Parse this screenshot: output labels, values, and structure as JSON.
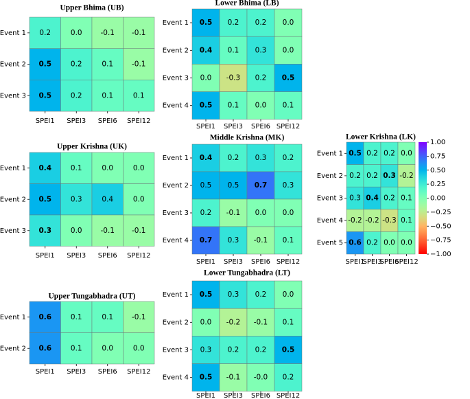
{
  "chart_data": [
    {
      "type": "heatmap",
      "title": "Upper Bhima (UB)",
      "colormap": "rainbow_r",
      "vlim": [
        -1,
        1
      ],
      "x": [
        "SPEI1",
        "SPEI3",
        "SPEI6",
        "SPEI12"
      ],
      "y": [
        "Event 1",
        "Event 2",
        "Event 3"
      ],
      "values": [
        [
          0.2,
          0.0,
          -0.1,
          -0.1
        ],
        [
          0.5,
          0.2,
          0.1,
          -0.1
        ],
        [
          0.5,
          0.2,
          0.1,
          0.1
        ]
      ],
      "value_labels": [
        [
          "0.2",
          "0.0",
          "-0.1",
          "-0.1"
        ],
        [
          "0.5",
          "0.2",
          "0.1",
          "-0.1"
        ],
        [
          "0.5",
          "0.2",
          "0.1",
          "0.1"
        ]
      ],
      "bold": [
        [
          false,
          false,
          false,
          false
        ],
        [
          true,
          false,
          false,
          false
        ],
        [
          true,
          false,
          false,
          false
        ]
      ]
    },
    {
      "type": "heatmap",
      "title": "Lower Bhima (LB)",
      "colormap": "rainbow_r",
      "vlim": [
        -1,
        1
      ],
      "x": [
        "SPEI1",
        "SPEI3",
        "SPEI6",
        "SPEI12"
      ],
      "y": [
        "Event 1",
        "Event 2",
        "Event 3",
        "Event 4"
      ],
      "values": [
        [
          0.5,
          0.2,
          0.2,
          0.0
        ],
        [
          0.4,
          0.1,
          0.3,
          0.0
        ],
        [
          0.0,
          -0.3,
          0.2,
          0.5
        ],
        [
          0.5,
          0.1,
          0.0,
          0.1
        ]
      ],
      "value_labels": [
        [
          "0.5",
          "0.2",
          "0.2",
          "0.0"
        ],
        [
          "0.4",
          "0.1",
          "0.3",
          "0.0"
        ],
        [
          "0.0",
          "-0.3",
          "0.2",
          "0.5"
        ],
        [
          "0.5",
          "0.1",
          "0.0",
          "0.1"
        ]
      ],
      "bold": [
        [
          true,
          false,
          false,
          false
        ],
        [
          true,
          false,
          false,
          false
        ],
        [
          false,
          false,
          false,
          true
        ],
        [
          true,
          false,
          false,
          false
        ]
      ]
    },
    {
      "type": "heatmap",
      "title": "Upper Krishna (UK)",
      "colormap": "rainbow_r",
      "vlim": [
        -1,
        1
      ],
      "x": [
        "SPEI1",
        "SPEI3",
        "SPEI6",
        "SPEI12"
      ],
      "y": [
        "Event 1",
        "Event 2",
        "Event 3"
      ],
      "values": [
        [
          0.4,
          0.1,
          0.0,
          0.0
        ],
        [
          0.5,
          0.3,
          0.4,
          0.0
        ],
        [
          0.3,
          0.0,
          -0.1,
          -0.1
        ]
      ],
      "value_labels": [
        [
          "0.4",
          "0.1",
          "0.0",
          "0.0"
        ],
        [
          "0.5",
          "0.3",
          "0.4",
          "0.0"
        ],
        [
          "0.3",
          "0.0",
          "-0.1",
          "-0.1"
        ]
      ],
      "bold": [
        [
          true,
          false,
          false,
          false
        ],
        [
          true,
          false,
          false,
          false
        ],
        [
          true,
          false,
          false,
          false
        ]
      ]
    },
    {
      "type": "heatmap",
      "title": "Middle Krishna (MK)",
      "colormap": "rainbow_r",
      "vlim": [
        -1,
        1
      ],
      "x": [
        "SPEI1",
        "SPEI3",
        "SPEI6",
        "SPEI12"
      ],
      "y": [
        "Event 1",
        "Event 2",
        "Event 3",
        "Event 4"
      ],
      "values": [
        [
          0.4,
          0.2,
          0.3,
          0.2
        ],
        [
          0.5,
          0.5,
          0.7,
          0.3
        ],
        [
          0.2,
          -0.1,
          0.0,
          0.0
        ],
        [
          0.7,
          0.3,
          -0.1,
          0.1
        ]
      ],
      "value_labels": [
        [
          "0.4",
          "0.2",
          "0.3",
          "0.2"
        ],
        [
          "0.5",
          "0.5",
          "0.7",
          "0.3"
        ],
        [
          "0.2",
          "-0.1",
          "0.0",
          "0.0"
        ],
        [
          "0.7",
          "0.3",
          "-0.1",
          "0.1"
        ]
      ],
      "bold": [
        [
          true,
          false,
          false,
          false
        ],
        [
          false,
          false,
          true,
          false
        ],
        [
          false,
          false,
          false,
          false
        ],
        [
          true,
          false,
          false,
          false
        ]
      ]
    },
    {
      "type": "heatmap",
      "title": "Lower Krishna (LK)",
      "colormap": "rainbow_r",
      "vlim": [
        -1,
        1
      ],
      "x": [
        "SPEI1",
        "SPEI3",
        "SPEI6",
        "SPEI12"
      ],
      "y": [
        "Event 1",
        "Event 2",
        "Event 3",
        "Event 4",
        "Event 5"
      ],
      "values": [
        [
          0.5,
          0.2,
          0.2,
          0.0
        ],
        [
          0.2,
          0.2,
          0.3,
          -0.2
        ],
        [
          0.3,
          0.4,
          0.2,
          0.1
        ],
        [
          -0.2,
          -0.2,
          -0.3,
          0.1
        ],
        [
          0.6,
          0.2,
          0.0,
          0.0
        ]
      ],
      "value_labels": [
        [
          "0.5",
          "0.2",
          "0.2",
          "0.0"
        ],
        [
          "0.2",
          "0.2",
          "0.3",
          "-0.2"
        ],
        [
          "0.3",
          "0.4",
          "0.2",
          "0.1"
        ],
        [
          "-0.2",
          "-0.2",
          "-0.3",
          "0.1"
        ],
        [
          "0.6",
          "0.2",
          "0.0",
          "0.0"
        ]
      ],
      "bold": [
        [
          true,
          false,
          false,
          false
        ],
        [
          false,
          false,
          true,
          false
        ],
        [
          false,
          true,
          false,
          false
        ],
        [
          false,
          false,
          false,
          false
        ],
        [
          true,
          false,
          false,
          false
        ]
      ],
      "colorbar": {
        "lim": [
          -1,
          1
        ],
        "ticks": [
          {
            "value": 1,
            "label": "1.00"
          },
          {
            "value": 0.75,
            "label": "0.75"
          },
          {
            "value": 0.5,
            "label": "0.50"
          },
          {
            "value": 0.25,
            "label": "0.25"
          },
          {
            "value": 0,
            "label": "0.00"
          },
          {
            "value": -0.25,
            "label": "−0.25"
          },
          {
            "value": -0.5,
            "label": "−0.50"
          },
          {
            "value": -0.75,
            "label": "−0.75"
          },
          {
            "value": -1,
            "label": "−1.00"
          }
        ]
      }
    },
    {
      "type": "heatmap",
      "title": "Upper Tungabhadra (UT)",
      "colormap": "rainbow_r",
      "vlim": [
        -1,
        1
      ],
      "x": [
        "SPEI1",
        "SPEI3",
        "SPEI6",
        "SPEI12"
      ],
      "y": [
        "Event 1",
        "Event 2"
      ],
      "values": [
        [
          0.6,
          0.1,
          0.1,
          -0.1
        ],
        [
          0.6,
          0.1,
          0.0,
          0.0
        ]
      ],
      "value_labels": [
        [
          "0.6",
          "0.1",
          "0.1",
          "-0.1"
        ],
        [
          "0.6",
          "0.1",
          "0.0",
          "0.0"
        ]
      ],
      "bold": [
        [
          true,
          false,
          false,
          false
        ],
        [
          true,
          false,
          false,
          false
        ]
      ]
    },
    {
      "type": "heatmap",
      "title": "Lower Tungabhadra (LT)",
      "colormap": "rainbow_r",
      "vlim": [
        -1,
        1
      ],
      "x": [
        "SPEI1",
        "SPEI3",
        "SPEI6",
        "SPEI12"
      ],
      "y": [
        "Event 1",
        "Event 2",
        "Event 3",
        "Event 4"
      ],
      "values": [
        [
          0.5,
          0.3,
          0.2,
          0.0
        ],
        [
          0.0,
          -0.2,
          -0.1,
          0.1
        ],
        [
          0.3,
          0.2,
          0.2,
          0.5
        ],
        [
          0.5,
          -0.1,
          -0.0,
          0.2
        ]
      ],
      "value_labels": [
        [
          "0.5",
          "0.3",
          "0.2",
          "0.0"
        ],
        [
          "0.0",
          "-0.2",
          "-0.1",
          "0.1"
        ],
        [
          "0.3",
          "0.2",
          "0.2",
          "0.5"
        ],
        [
          "0.5",
          "-0.1",
          "-0.0",
          "0.2"
        ]
      ],
      "bold": [
        [
          true,
          false,
          false,
          false
        ],
        [
          false,
          false,
          false,
          false
        ],
        [
          false,
          false,
          false,
          true
        ],
        [
          true,
          false,
          false,
          false
        ]
      ]
    }
  ]
}
